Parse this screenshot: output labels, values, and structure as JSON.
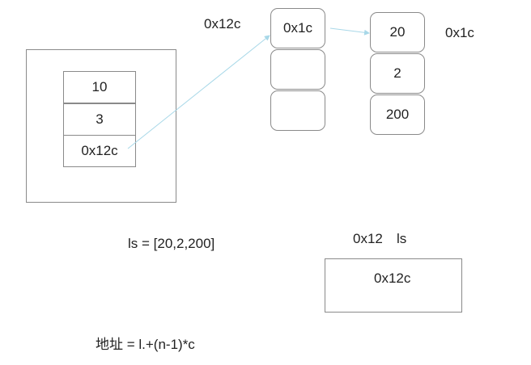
{
  "stack_frame": {
    "cells": [
      "10",
      "3",
      "0x12c"
    ]
  },
  "list_object": {
    "address_label": "0x12c",
    "slots": [
      "0x1c",
      "",
      ""
    ]
  },
  "int_block": {
    "address_label": "0x1c",
    "values": [
      "20",
      "2",
      "200"
    ]
  },
  "variable": {
    "address": "0x12",
    "name": "ls",
    "box_value": "0x12c"
  },
  "assignment_text": "ls = [20,2,200]",
  "formula_text": "地址 = l.+(n-1)*c",
  "colors": {
    "border": "#8a8a8a",
    "arrow": "#a8d8e8",
    "text": "#222222"
  }
}
